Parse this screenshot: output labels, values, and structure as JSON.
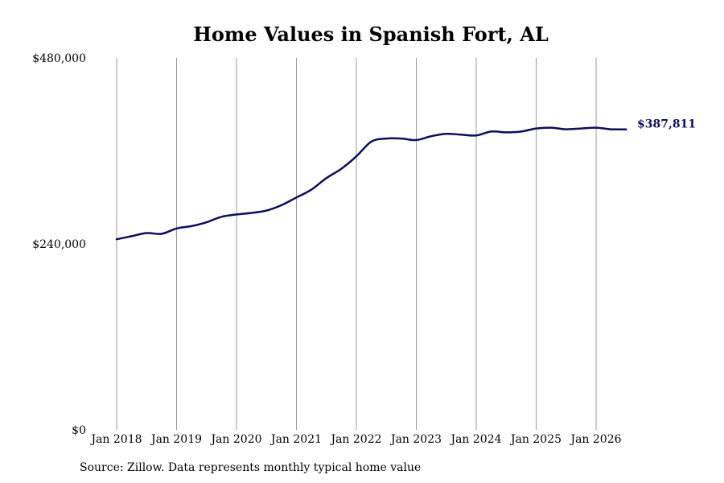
{
  "chart_data": {
    "type": "line",
    "title": "Home Values in Spanish Fort, AL",
    "xlabel": "",
    "ylabel": "",
    "ylim": [
      0,
      480000
    ],
    "y_ticks": [
      "$0",
      "$240,000",
      "$480,000"
    ],
    "y_tick_values": [
      0,
      240000,
      480000
    ],
    "x_ticks": [
      "Jan 2018",
      "Jan 2019",
      "Jan 2020",
      "Jan 2021",
      "Jan 2022",
      "Jan 2023",
      "Jan 2024",
      "Jan 2025",
      "Jan 2026"
    ],
    "grid": "vertical",
    "line_color": "#0d0d5e",
    "end_label": "$387,811",
    "series": [
      {
        "x": [
          "2018-01",
          "2018-04",
          "2018-07",
          "2018-10",
          "2019-01",
          "2019-04",
          "2019-07",
          "2019-10",
          "2020-01",
          "2020-04",
          "2020-07",
          "2020-10",
          "2021-01",
          "2021-04",
          "2021-07",
          "2021-10",
          "2022-01",
          "2022-04",
          "2022-07",
          "2022-10",
          "2023-01",
          "2023-04",
          "2023-07",
          "2023-10",
          "2024-01",
          "2024-04",
          "2024-07",
          "2024-10",
          "2025-01",
          "2025-04",
          "2025-07",
          "2025-10",
          "2026-01",
          "2026-04",
          "2026-07"
        ],
        "values": [
          246000,
          250000,
          254000,
          253000,
          260000,
          263000,
          268000,
          275000,
          278000,
          280000,
          283000,
          290000,
          300000,
          310000,
          325000,
          337000,
          353000,
          372000,
          376000,
          376000,
          374000,
          379000,
          382000,
          381000,
          380000,
          385000,
          384000,
          385000,
          389000,
          390000,
          388000,
          389000,
          390000,
          388000,
          387811
        ]
      }
    ]
  },
  "source": "Source: Zillow. Data represents monthly typical home value"
}
